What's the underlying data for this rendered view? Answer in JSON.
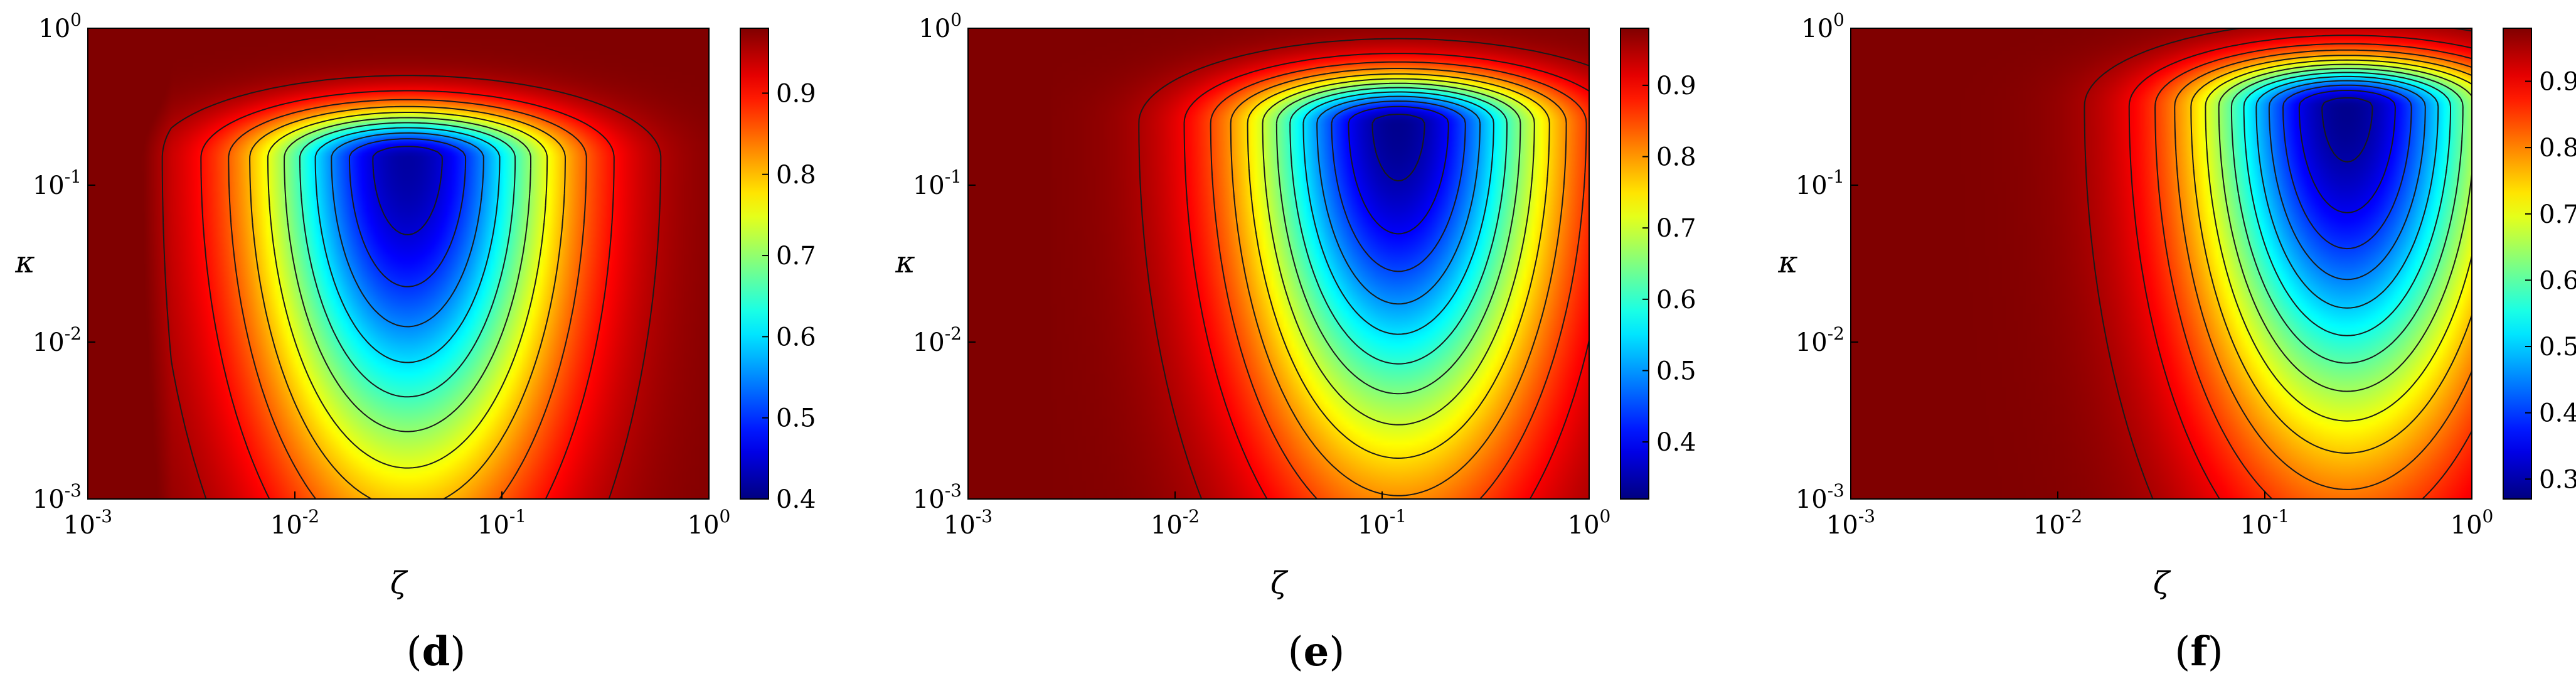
{
  "chart_data": [
    {
      "type": "heatmap",
      "panel_label_open": "(",
      "panel_letter": "d",
      "panel_label_close": ")",
      "xlabel": "ζ",
      "ylabel": "κ",
      "x_scale": "log",
      "y_scale": "log",
      "xlim": [
        0.001,
        1
      ],
      "ylim": [
        0.001,
        1
      ],
      "x_ticks": [
        {
          "mant": "10",
          "exp": "-3"
        },
        {
          "mant": "10",
          "exp": "-2"
        },
        {
          "mant": "10",
          "exp": "-1"
        },
        {
          "mant": "10",
          "exp": "0"
        }
      ],
      "y_ticks": [
        {
          "mant": "10",
          "exp": "-3"
        },
        {
          "mant": "10",
          "exp": "-2"
        },
        {
          "mant": "10",
          "exp": "-1"
        },
        {
          "mant": "10",
          "exp": "0"
        }
      ],
      "colormap": "jet",
      "colorbar_range": [
        0.4,
        0.98
      ],
      "colorbar_ticks": [
        "0.4",
        "0.5",
        "0.6",
        "0.7",
        "0.8",
        "0.9"
      ],
      "contour_lines": true,
      "minimum": {
        "zeta": 0.035,
        "kappa": 0.15,
        "value": 0.42
      }
    },
    {
      "type": "heatmap",
      "panel_label_open": "(",
      "panel_letter": "e",
      "panel_label_close": ")",
      "xlabel": "ζ",
      "ylabel": "κ",
      "x_scale": "log",
      "y_scale": "log",
      "xlim": [
        0.001,
        1
      ],
      "ylim": [
        0.001,
        1
      ],
      "x_ticks": [
        {
          "mant": "10",
          "exp": "-3"
        },
        {
          "mant": "10",
          "exp": "-2"
        },
        {
          "mant": "10",
          "exp": "-1"
        },
        {
          "mant": "10",
          "exp": "0"
        }
      ],
      "y_ticks": [
        {
          "mant": "10",
          "exp": "-3"
        },
        {
          "mant": "10",
          "exp": "-2"
        },
        {
          "mant": "10",
          "exp": "-1"
        },
        {
          "mant": "10",
          "exp": "0"
        }
      ],
      "colormap": "jet",
      "colorbar_range": [
        0.32,
        0.98
      ],
      "colorbar_ticks": [
        "0.4",
        "0.5",
        "0.6",
        "0.7",
        "0.8",
        "0.9"
      ],
      "contour_lines": true,
      "minimum": {
        "zeta": 0.12,
        "kappa": 0.25,
        "value": 0.33
      }
    },
    {
      "type": "heatmap",
      "panel_label_open": "(",
      "panel_letter": "f",
      "panel_label_close": ")",
      "xlabel": "ζ",
      "ylabel": "κ",
      "x_scale": "log",
      "y_scale": "log",
      "xlim": [
        0.001,
        1
      ],
      "ylim": [
        0.001,
        1
      ],
      "x_ticks": [
        {
          "mant": "10",
          "exp": "-3"
        },
        {
          "mant": "10",
          "exp": "-2"
        },
        {
          "mant": "10",
          "exp": "-1"
        },
        {
          "mant": "10",
          "exp": "0"
        }
      ],
      "y_ticks": [
        {
          "mant": "10",
          "exp": "-3"
        },
        {
          "mant": "10",
          "exp": "-2"
        },
        {
          "mant": "10",
          "exp": "-1"
        },
        {
          "mant": "10",
          "exp": "0"
        }
      ],
      "colormap": "jet",
      "colorbar_range": [
        0.27,
        0.98
      ],
      "colorbar_ticks": [
        "0.3",
        "0.4",
        "0.5",
        "0.6",
        "0.7",
        "0.8",
        "0.9"
      ],
      "contour_lines": true,
      "minimum": {
        "zeta": 0.25,
        "kappa": 0.32,
        "value": 0.28
      }
    }
  ]
}
